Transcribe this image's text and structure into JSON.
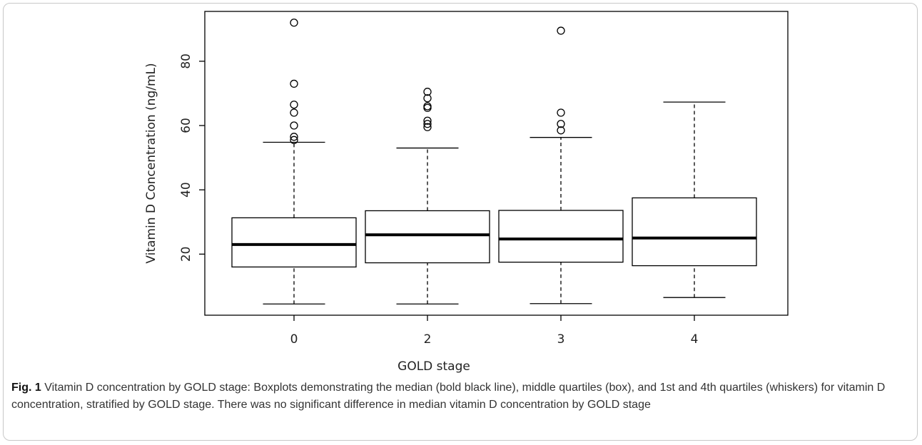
{
  "chart_data": {
    "type": "boxplot",
    "xlabel": "GOLD stage",
    "ylabel": "Vitamin D Concentration (ng/mL)",
    "categories": [
      "0",
      "2",
      "3",
      "4"
    ],
    "boxes": [
      {
        "whisker_low": 4.5,
        "q1": 16,
        "median": 23,
        "q3": 31.3,
        "whisker_high": 54.8,
        "outliers": [
          55.5,
          56.5,
          60,
          64,
          66.5,
          73,
          92
        ]
      },
      {
        "whisker_low": 4.5,
        "q1": 17.3,
        "median": 26,
        "q3": 33.5,
        "whisker_high": 53,
        "outliers": [
          59.5,
          60.5,
          61.5,
          65.5,
          66,
          68.5,
          70.5
        ]
      },
      {
        "whisker_low": 4.6,
        "q1": 17.5,
        "median": 24.7,
        "q3": 33.6,
        "whisker_high": 56.3,
        "outliers": [
          58.5,
          60.5,
          64,
          89.5
        ]
      },
      {
        "whisker_low": 6.5,
        "q1": 16.4,
        "median": 25,
        "q3": 37.5,
        "whisker_high": 67.3,
        "outliers": []
      }
    ],
    "color": "#000000",
    "ylim": [
      1,
      95.5
    ],
    "yticks": [
      20,
      40,
      60,
      80
    ]
  },
  "caption": {
    "label": "Fig. 1",
    "text": "Vitamin D concentration by GOLD stage: Boxplots demonstrating the median (bold black line), middle quartiles (box), and 1st and 4th quartiles (whiskers) for vitamin D concentration, stratified by GOLD stage. There was no significant difference in median vitamin D concentration by GOLD stage"
  }
}
